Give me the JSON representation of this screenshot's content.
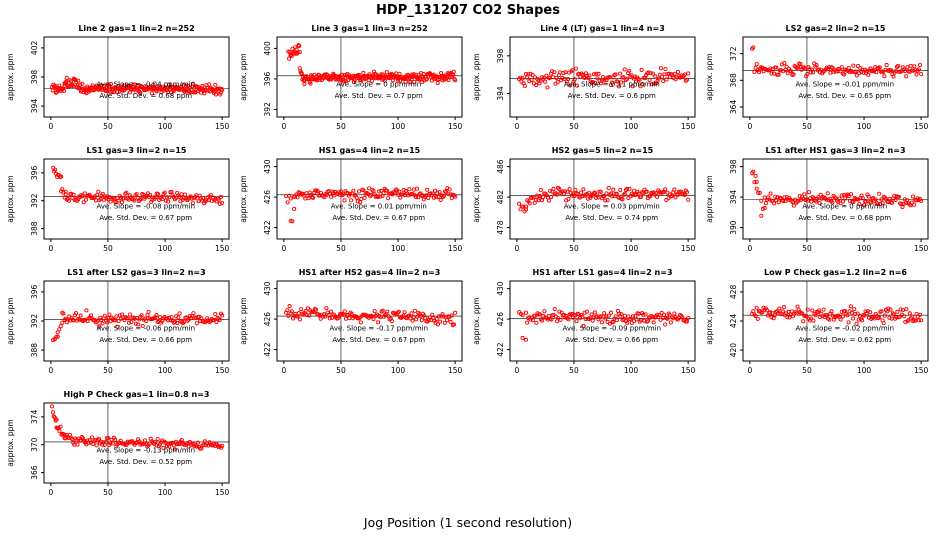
{
  "page": {
    "title": "HDP_131207  CO2 Shapes",
    "xlabel": "Jog Position (1 second resolution)",
    "point_color": "#ff0000",
    "line_color": "#000000"
  },
  "chart_data": [
    {
      "type": "scatter",
      "title": "Line 2 gas=1 lin=2 n=252",
      "ylabel": "approx. ppm",
      "yticks": [
        394,
        398,
        402
      ],
      "ylim": [
        392.5,
        403.5
      ],
      "xticks": [
        0,
        50,
        100,
        150
      ],
      "xlim": [
        -6,
        156
      ],
      "hline": 396.4,
      "vline": 50,
      "slope_label": "Ave. Slope = -0.04 ppm/min",
      "stddev_label": "Ave. Std. Dev. = 0.68 ppm",
      "segments": [
        [
          1,
          12,
          20,
          396.3,
          396.4,
          0.3
        ],
        [
          12,
          24,
          20,
          397.0,
          397.2,
          0.3
        ],
        [
          24,
          150,
          212,
          396.4,
          396.3,
          0.3
        ]
      ]
    },
    {
      "type": "scatter",
      "title": "Line 3 gas=1 lin=3 n=252",
      "ylabel": "approx. ppm",
      "yticks": [
        392,
        396,
        400
      ],
      "ylim": [
        391,
        401.5
      ],
      "xticks": [
        0,
        50,
        100,
        150
      ],
      "xlim": [
        -6,
        156
      ],
      "hline": 396.4,
      "vline": 50,
      "slope_label": "Ave. Slope = 0 ppm/min",
      "stddev_label": "Ave. Std. Dev. = 0.7 ppm",
      "segments": [
        [
          4,
          14,
          18,
          399.2,
          399.9,
          0.3
        ],
        [
          14,
          18,
          8,
          397.0,
          395.8,
          0.45
        ],
        [
          18,
          150,
          226,
          396.1,
          396.3,
          0.28
        ]
      ]
    },
    {
      "type": "scatter",
      "title": "Line 4 (LT) gas=1 lin=4 n=3",
      "ylabel": "approx. ppm",
      "yticks": [
        394,
        398
      ],
      "ylim": [
        391.5,
        400
      ],
      "xticks": [
        0,
        50,
        100,
        150
      ],
      "xlim": [
        -6,
        156
      ],
      "hline": 395.6,
      "vline": 50,
      "slope_label": "Ave. Slope = 0.11 ppm/min",
      "stddev_label": "Ave. Std. Dev. = 0.6 ppm",
      "segments": [
        [
          2,
          150,
          150,
          395.4,
          395.8,
          0.5
        ]
      ]
    },
    {
      "type": "scatter",
      "title": "LS2 gas=2 lin=2 n=15",
      "ylabel": "approx. ppm",
      "yticks": [
        364,
        368,
        372
      ],
      "ylim": [
        362.5,
        374.5
      ],
      "xticks": [
        0,
        50,
        100,
        150
      ],
      "xlim": [
        -6,
        156
      ],
      "hline": 369.5,
      "vline": 50,
      "slope_label": "Ave. Slope = -0.01 ppm/min",
      "stddev_label": "Ave. Std. Dev. = 0.65 ppm",
      "segments": [
        [
          2,
          3,
          2,
          372.8,
          372.5,
          0.2
        ],
        [
          4,
          150,
          146,
          369.7,
          369.4,
          0.4
        ]
      ]
    },
    {
      "type": "scatter",
      "title": "LS1 gas=3 lin=2 n=15",
      "ylabel": "approx. ppm",
      "yticks": [
        388,
        392,
        396
      ],
      "ylim": [
        386.5,
        398
      ],
      "xticks": [
        0,
        50,
        100,
        150
      ],
      "xlim": [
        -6,
        156
      ],
      "hline": 392.6,
      "vline": 50,
      "slope_label": "Ave. Slope = -0.08 ppm/min",
      "stddev_label": "Ave. Std. Dev. = 0.67 ppm",
      "segments": [
        [
          2,
          9,
          9,
          396.6,
          395.2,
          0.4
        ],
        [
          9,
          13,
          5,
          393.6,
          392.6,
          0.35
        ],
        [
          13,
          150,
          140,
          392.5,
          392.3,
          0.35
        ]
      ]
    },
    {
      "type": "scatter",
      "title": "HS1 gas=4 lin=2 n=15",
      "ylabel": "approx. ppm",
      "yticks": [
        422,
        426,
        430
      ],
      "ylim": [
        420.5,
        431
      ],
      "xticks": [
        0,
        50,
        100,
        150
      ],
      "xlim": [
        -6,
        156
      ],
      "hline": 426.3,
      "vline": 50,
      "slope_label": "Ave. Slope = 0.01 ppm/min",
      "stddev_label": "Ave. Std. Dev. = 0.67 ppm",
      "segments": [
        [
          2,
          6,
          4,
          425.6,
          426.0,
          0.4
        ],
        [
          6,
          9,
          3,
          422.4,
          423.6,
          0.5
        ],
        [
          9,
          150,
          145,
          426.3,
          426.4,
          0.4
        ]
      ]
    },
    {
      "type": "scatter",
      "title": "HS2 gas=5 lin=2 n=15",
      "ylabel": "approx. ppm",
      "yticks": [
        478,
        482,
        486
      ],
      "ylim": [
        476.5,
        487
      ],
      "xticks": [
        0,
        50,
        100,
        150
      ],
      "xlim": [
        -6,
        156
      ],
      "hline": 482.2,
      "vline": 50,
      "slope_label": "Ave. Slope = 0.03 ppm/min",
      "stddev_label": "Ave. Std. Dev. = 0.74 ppm",
      "segments": [
        [
          2,
          8,
          6,
          481.3,
          480.7,
          0.4
        ],
        [
          8,
          20,
          12,
          481.3,
          482.2,
          0.4
        ],
        [
          20,
          150,
          130,
          482.4,
          482.4,
          0.4
        ]
      ]
    },
    {
      "type": "scatter",
      "title": "LS1 after HS1 gas=3 lin=2 n=3",
      "ylabel": "approx. ppm",
      "yticks": [
        390,
        394,
        398
      ],
      "ylim": [
        388.5,
        399
      ],
      "xticks": [
        0,
        50,
        100,
        150
      ],
      "xlim": [
        -6,
        156
      ],
      "hline": 393.7,
      "vline": 50,
      "slope_label": "Ave. Slope = 0 ppm/min",
      "stddev_label": "Ave. Std. Dev. = 0.68 ppm",
      "segments": [
        [
          2,
          6,
          5,
          397.4,
          396.3,
          0.35
        ],
        [
          6,
          10,
          4,
          394.6,
          393.8,
          0.4
        ],
        [
          10,
          13,
          3,
          391.9,
          392.6,
          0.4
        ],
        [
          13,
          150,
          135,
          393.8,
          393.5,
          0.35
        ]
      ]
    },
    {
      "type": "scatter",
      "title": "LS1 after LS2 gas=3 lin=2 n=3",
      "ylabel": "approx. ppm",
      "yticks": [
        388,
        392,
        396
      ],
      "ylim": [
        386.5,
        397.5
      ],
      "xticks": [
        0,
        50,
        100,
        150
      ],
      "xlim": [
        -6,
        156
      ],
      "hline": 392.2,
      "vline": 50,
      "slope_label": "Ave. Slope = -0.06 ppm/min",
      "stddev_label": "Ave. Std. Dev. = 0.66 ppm",
      "segments": [
        [
          2,
          6,
          4,
          388.7,
          389.6,
          0.45
        ],
        [
          6,
          10,
          4,
          390.6,
          391.6,
          0.35
        ],
        [
          10,
          150,
          140,
          392.3,
          392.2,
          0.4
        ]
      ]
    },
    {
      "type": "scatter",
      "title": "HS1 after HS2 gas=4 lin=2 n=3",
      "ylabel": "approx. ppm",
      "yticks": [
        422,
        426,
        430
      ],
      "ylim": [
        420.5,
        431
      ],
      "xticks": [
        0,
        50,
        100,
        150
      ],
      "xlim": [
        -6,
        156
      ],
      "hline": 426.4,
      "vline": 50,
      "slope_label": "Ave. Slope = -0.17 ppm/min",
      "stddev_label": "Ave. Std. Dev. = 0.67 ppm",
      "segments": [
        [
          2,
          150,
          148,
          426.8,
          426.1,
          0.4
        ]
      ]
    },
    {
      "type": "scatter",
      "title": "HS1 after LS1 gas=4 lin=2 n=3",
      "ylabel": "approx. ppm",
      "yticks": [
        422,
        426,
        430
      ],
      "ylim": [
        420.5,
        431
      ],
      "xticks": [
        0,
        50,
        100,
        150
      ],
      "xlim": [
        -6,
        156
      ],
      "hline": 426.1,
      "vline": 50,
      "slope_label": "Ave. Slope = -0.09 ppm/min",
      "stddev_label": "Ave. Std. Dev. = 0.66 ppm",
      "segments": [
        [
          2,
          5,
          3,
          427.0,
          426.6,
          0.35
        ],
        [
          5,
          8,
          2,
          423.2,
          423.2,
          0.3
        ],
        [
          8,
          150,
          142,
          426.3,
          426.0,
          0.4
        ]
      ]
    },
    {
      "type": "scatter",
      "title": "Low P Check gas=1.2 lin=2 n=6",
      "ylabel": "approx. ppm",
      "yticks": [
        420,
        424,
        428
      ],
      "ylim": [
        418.5,
        429.5
      ],
      "xticks": [
        0,
        50,
        100,
        150
      ],
      "xlim": [
        -6,
        156
      ],
      "hline": 424.8,
      "vline": 50,
      "slope_label": "Ave. Slope = -0.02 ppm/min",
      "stddev_label": "Ave. Std. Dev. = 0.62 ppm",
      "segments": [
        [
          2,
          150,
          150,
          425.1,
          424.6,
          0.45
        ]
      ]
    },
    {
      "type": "scatter",
      "title": "High P Check gas=1 lin=0.8 n=3",
      "ylabel": "approx. ppm",
      "yticks": [
        366,
        370,
        374
      ],
      "ylim": [
        364.5,
        376
      ],
      "xticks": [
        0,
        50,
        100,
        150
      ],
      "xlim": [
        -6,
        156
      ],
      "hline": 370.4,
      "vline": 50,
      "slope_label": "Ave. Slope = -0.13 ppm/min",
      "stddev_label": "Ave. Std. Dev. = 0.52 ppm",
      "segments": [
        [
          1,
          5,
          6,
          374.9,
          373.0,
          0.3
        ],
        [
          5,
          12,
          9,
          372.7,
          371.2,
          0.3
        ],
        [
          12,
          30,
          20,
          371.0,
          370.5,
          0.3
        ],
        [
          30,
          150,
          120,
          370.5,
          369.9,
          0.28
        ]
      ]
    }
  ]
}
